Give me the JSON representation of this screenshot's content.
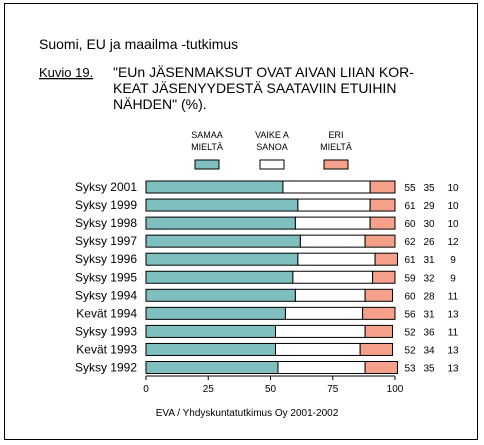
{
  "header": {
    "series_title": "Suomi, EU ja maailma -tutkimus",
    "figure_label": "Kuvio 19.",
    "question_lines": [
      "\"EUn JÄSENMAKSUT OVAT AIVAN LIIAN KOR-",
      "KEAT JÄSENYYDESTÄ SAATAVIIN ETUIHIN",
      "NÄHDEN\" (%)."
    ]
  },
  "footer": {
    "source": "EVA / Yhdyskuntatutkimus Oy 2001-2002"
  },
  "chart_data": {
    "type": "bar",
    "orientation": "horizontal",
    "stacked": true,
    "title": "\"EUn JÄSENMAKSUT OVAT AIVAN LIIAN KORKEAT JÄSENYYDESTÄ SAATAVIIN ETUIHIN NÄHDEN\" (%).",
    "categories": [
      "Syksy 2001",
      "Syksy 1999",
      "Syksy 1998",
      "Syksy 1997",
      "Syksy 1996",
      "Syksy 1995",
      "Syksy 1994",
      "Kevät 1994",
      "Syksy 1993",
      "Kevät 1993",
      "Syksy 1992"
    ],
    "series": [
      {
        "legend_lines": [
          "SAMAA",
          "MIELTÄ"
        ],
        "color": "#7fbfbf",
        "values": [
          55,
          61,
          60,
          62,
          61,
          59,
          60,
          56,
          52,
          52,
          53
        ]
      },
      {
        "legend_lines": [
          "VAIKE A",
          "SANOA"
        ],
        "color": "#ffffff",
        "values": [
          35,
          29,
          30,
          26,
          31,
          32,
          28,
          31,
          36,
          34,
          35
        ]
      },
      {
        "legend_lines": [
          "ERI",
          "MIELTÄ"
        ],
        "color": "#f5a08a",
        "values": [
          10,
          10,
          10,
          12,
          9,
          9,
          11,
          13,
          11,
          13,
          13
        ]
      }
    ],
    "xlim": [
      0,
      100
    ],
    "x_ticks": [
      0,
      25,
      50,
      75,
      100
    ],
    "legend_position": "top"
  }
}
